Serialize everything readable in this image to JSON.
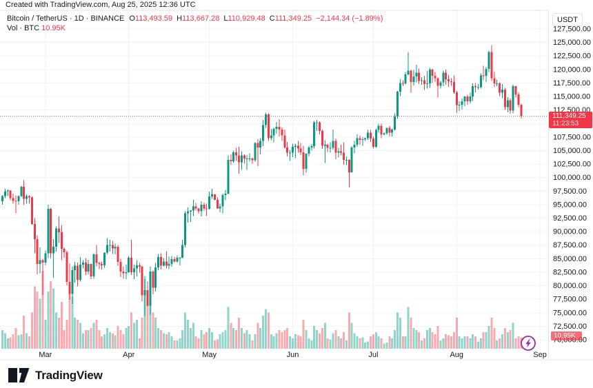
{
  "attribution": "Created with TradingView.com, Aug 25, 2025 12:36 UTC",
  "legend": {
    "title": "Bitcoin / TetherUS · 1D · BINANCE",
    "ohlc": {
      "o_label": "O",
      "o": "113,493.59",
      "h_label": "H",
      "h": "113,667.28",
      "l_label": "L",
      "l": "110,929.48",
      "c_label": "C",
      "c": "111,349.25",
      "change": "−2,144.34 (−1.89%)"
    },
    "volume_label": "Vol · BTC",
    "volume_value": "10.95K"
  },
  "price_axis": {
    "currency": "USDT",
    "ticks": [
      "127,500.00",
      "125,000.00",
      "122,500.00",
      "120,000.00",
      "117,500.00",
      "115,000.00",
      "112,500.00",
      "110,000.00",
      "107,500.00",
      "105,000.00",
      "102,500.00",
      "100,000.00",
      "97,500.00",
      "95,000.00",
      "92,500.00",
      "90,000.00",
      "87,500.00",
      "85,000.00",
      "82,500.00",
      "80,000.00",
      "77,500.00",
      "75,000.00",
      "72,500.00",
      "70,000.00"
    ],
    "last_price_label": "111,349.25",
    "countdown": "11:23:53",
    "volume_badge": "10.95K"
  },
  "time_axis": {
    "months": [
      {
        "label": "Mar",
        "day_index": 16
      },
      {
        "label": "Apr",
        "day_index": 47
      },
      {
        "label": "May",
        "day_index": 77
      },
      {
        "label": "Jun",
        "day_index": 108
      },
      {
        "label": "Jul",
        "day_index": 138
      },
      {
        "label": "Aug",
        "day_index": 169
      },
      {
        "label": "Sep",
        "day_index": 200
      }
    ]
  },
  "footer": {
    "logo_text": "TradingView"
  },
  "colors": {
    "up": "#089981",
    "down": "#F23645",
    "vol_up": "#22ab94",
    "vol_down": "#f7525f",
    "text": "#131722",
    "grid": "#F0F3FA",
    "border": "#E0E3EB",
    "badge_red": "#F23645",
    "flash_purple": "#9C27B0",
    "background": "#FFFFFF"
  },
  "chart_data": {
    "type": "candlestick",
    "title": "Bitcoin / TetherUS",
    "symbol": "BTCUSDT",
    "exchange": "BINANCE",
    "interval": "1D",
    "quote_currency": "USDT",
    "start_date": "2025-02-13",
    "end_date": "2025-08-25",
    "ylim": [
      70000,
      127500
    ],
    "grid_step": 2500,
    "last_price": 111349.25,
    "last_change": -2144.34,
    "last_change_pct": -1.89,
    "last_volume_k_btc": 10.95,
    "price_unit": "thousand USDT",
    "volume_unit": "thousand BTC",
    "volume_scale_max_k": 75,
    "candles_format": [
      "open",
      "high",
      "low",
      "close",
      "volume_k"
    ],
    "candles": [
      [
        95.6,
        96.8,
        95.0,
        96.6,
        18
      ],
      [
        96.6,
        97.9,
        96.2,
        97.5,
        15
      ],
      [
        97.5,
        97.8,
        96.6,
        97.6,
        10
      ],
      [
        97.6,
        97.7,
        95.8,
        96.2,
        11
      ],
      [
        96.2,
        97.0,
        95.2,
        95.7,
        14
      ],
      [
        95.7,
        96.7,
        93.4,
        95.6,
        20
      ],
      [
        95.6,
        96.7,
        95.0,
        96.6,
        13
      ],
      [
        96.6,
        98.5,
        96.4,
        98.3,
        14
      ],
      [
        98.3,
        99.5,
        94.9,
        96.1,
        32
      ],
      [
        96.1,
        96.9,
        95.2,
        96.6,
        15
      ],
      [
        96.6,
        96.7,
        95.2,
        96.3,
        12
      ],
      [
        96.3,
        96.5,
        91.3,
        91.4,
        35
      ],
      [
        91.4,
        92.5,
        86.0,
        88.6,
        60
      ],
      [
        88.6,
        89.3,
        82.1,
        84.0,
        55
      ],
      [
        84.0,
        87.1,
        82.3,
        84.7,
        48
      ],
      [
        84.7,
        85.0,
        78.2,
        84.3,
        75
      ],
      [
        84.3,
        86.5,
        83.8,
        86.0,
        28
      ],
      [
        86.0,
        95.0,
        85.1,
        94.2,
        55
      ],
      [
        94.2,
        94.4,
        85.1,
        86.0,
        65
      ],
      [
        86.0,
        88.6,
        81.5,
        87.2,
        58
      ],
      [
        87.2,
        91.0,
        86.3,
        90.6,
        35
      ],
      [
        90.6,
        92.8,
        87.9,
        89.9,
        30
      ],
      [
        89.9,
        91.2,
        84.7,
        86.8,
        45
      ],
      [
        86.8,
        87.1,
        85.2,
        86.2,
        18
      ],
      [
        86.2,
        86.5,
        80.1,
        80.7,
        28
      ],
      [
        80.7,
        84.1,
        77.4,
        78.5,
        55
      ],
      [
        78.5,
        83.6,
        76.6,
        82.9,
        50
      ],
      [
        82.9,
        84.4,
        80.6,
        83.7,
        30
      ],
      [
        83.7,
        84.3,
        79.9,
        81.1,
        28
      ],
      [
        81.1,
        85.3,
        80.8,
        83.9,
        25
      ],
      [
        83.9,
        84.7,
        83.2,
        84.3,
        15
      ],
      [
        84.3,
        85.1,
        82.0,
        82.6,
        18
      ],
      [
        82.6,
        84.8,
        82.1,
        84.0,
        18
      ],
      [
        84.0,
        84.1,
        81.2,
        81.7,
        20
      ],
      [
        81.7,
        86.0,
        81.3,
        85.8,
        25
      ],
      [
        85.8,
        87.5,
        83.6,
        84.2,
        28
      ],
      [
        84.2,
        84.5,
        83.1,
        84.0,
        18
      ],
      [
        84.0,
        84.5,
        83.0,
        83.8,
        12
      ],
      [
        83.8,
        86.1,
        83.3,
        86.1,
        14
      ],
      [
        86.1,
        88.8,
        85.8,
        87.5,
        20
      ],
      [
        87.5,
        88.5,
        86.3,
        87.5,
        16
      ],
      [
        87.5,
        88.3,
        85.9,
        86.9,
        15
      ],
      [
        86.9,
        87.8,
        85.8,
        87.2,
        13
      ],
      [
        87.2,
        87.5,
        83.7,
        84.4,
        22
      ],
      [
        84.4,
        85.0,
        81.6,
        82.6,
        18
      ],
      [
        82.6,
        83.5,
        81.3,
        82.3,
        14
      ],
      [
        82.3,
        83.9,
        81.2,
        82.5,
        20
      ],
      [
        82.5,
        85.5,
        82.4,
        85.2,
        22
      ],
      [
        85.2,
        88.5,
        82.0,
        82.5,
        35
      ],
      [
        82.5,
        83.9,
        81.2,
        83.2,
        25
      ],
      [
        83.2,
        84.7,
        81.7,
        83.8,
        28
      ],
      [
        83.8,
        84.2,
        82.4,
        83.5,
        10
      ],
      [
        83.5,
        83.7,
        77.1,
        78.2,
        30
      ],
      [
        78.2,
        81.2,
        74.4,
        79.2,
        70
      ],
      [
        79.2,
        80.8,
        76.2,
        76.3,
        45
      ],
      [
        76.3,
        83.5,
        74.6,
        82.6,
        60
      ],
      [
        82.6,
        82.8,
        78.4,
        79.6,
        35
      ],
      [
        79.6,
        84.2,
        78.9,
        83.4,
        30
      ],
      [
        83.4,
        85.9,
        82.9,
        85.3,
        20
      ],
      [
        85.3,
        86.0,
        83.0,
        83.7,
        18
      ],
      [
        83.7,
        85.1,
        83.6,
        84.5,
        15
      ],
      [
        84.5,
        86.4,
        83.2,
        83.7,
        14
      ],
      [
        83.7,
        85.4,
        83.1,
        84.0,
        16
      ],
      [
        84.0,
        85.5,
        83.5,
        84.9,
        12
      ],
      [
        84.9,
        85.3,
        84.3,
        84.5,
        8
      ],
      [
        84.5,
        85.6,
        84.3,
        85.2,
        8
      ],
      [
        85.2,
        85.3,
        83.8,
        85.2,
        10
      ],
      [
        85.2,
        88.5,
        85.1,
        87.5,
        18
      ],
      [
        87.5,
        93.8,
        87.1,
        93.4,
        35
      ],
      [
        93.4,
        94.5,
        91.7,
        93.7,
        28
      ],
      [
        93.7,
        94.0,
        91.8,
        93.9,
        20
      ],
      [
        93.9,
        95.9,
        92.9,
        94.7,
        25
      ],
      [
        94.7,
        95.3,
        93.9,
        94.3,
        12
      ],
      [
        94.3,
        94.4,
        93.3,
        93.8,
        10
      ],
      [
        93.8,
        95.6,
        92.8,
        95.0,
        18
      ],
      [
        95.0,
        95.4,
        93.9,
        94.3,
        14
      ],
      [
        94.3,
        95.2,
        92.9,
        94.2,
        16
      ],
      [
        94.2,
        97.4,
        94.1,
        96.5,
        20
      ],
      [
        96.5,
        97.9,
        96.1,
        96.9,
        16
      ],
      [
        96.9,
        96.9,
        95.8,
        95.9,
        8
      ],
      [
        95.9,
        96.3,
        94.2,
        94.3,
        9
      ],
      [
        94.3,
        95.2,
        93.6,
        94.7,
        14
      ],
      [
        94.7,
        97.0,
        93.4,
        96.8,
        16
      ],
      [
        96.8,
        97.7,
        95.8,
        97.0,
        18
      ],
      [
        97.0,
        104.1,
        96.9,
        103.3,
        40
      ],
      [
        103.3,
        104.3,
        102.3,
        103.0,
        25
      ],
      [
        103.0,
        105.0,
        102.7,
        104.7,
        20
      ],
      [
        104.7,
        105.5,
        103.1,
        104.1,
        18
      ],
      [
        104.1,
        105.7,
        100.7,
        102.8,
        30
      ],
      [
        102.8,
        104.9,
        101.4,
        104.1,
        20
      ],
      [
        104.1,
        104.3,
        102.6,
        103.5,
        15
      ],
      [
        103.5,
        104.2,
        101.4,
        103.5,
        18
      ],
      [
        103.5,
        104.5,
        103.0,
        103.5,
        14
      ],
      [
        103.5,
        103.7,
        102.6,
        103.2,
        8
      ],
      [
        103.2,
        106.5,
        102.9,
        106.4,
        14
      ],
      [
        106.4,
        107.1,
        102.1,
        105.6,
        25
      ],
      [
        105.6,
        107.3,
        104.3,
        106.8,
        20
      ],
      [
        106.8,
        110.7,
        105.8,
        109.7,
        32
      ],
      [
        109.7,
        112.0,
        109.2,
        111.7,
        38
      ],
      [
        111.7,
        111.9,
        106.8,
        107.3,
        35
      ],
      [
        107.3,
        109.0,
        106.9,
        107.8,
        14
      ],
      [
        107.8,
        109.3,
        106.5,
        109.0,
        12
      ],
      [
        109.0,
        110.3,
        108.1,
        109.4,
        15
      ],
      [
        109.4,
        110.8,
        107.6,
        108.9,
        18
      ],
      [
        108.9,
        109.3,
        106.8,
        107.8,
        16
      ],
      [
        107.8,
        108.9,
        105.4,
        105.6,
        18
      ],
      [
        105.6,
        106.6,
        103.9,
        104.6,
        20
      ],
      [
        104.6,
        105.1,
        103.1,
        104.6,
        12
      ],
      [
        104.6,
        106.3,
        103.8,
        105.7,
        10
      ],
      [
        105.7,
        106.3,
        103.6,
        105.9,
        14
      ],
      [
        105.9,
        106.8,
        104.6,
        105.4,
        13
      ],
      [
        105.4,
        106.4,
        104.2,
        104.7,
        12
      ],
      [
        104.7,
        105.9,
        100.4,
        101.6,
        28
      ],
      [
        101.6,
        104.5,
        100.9,
        104.4,
        18
      ],
      [
        104.4,
        105.9,
        103.9,
        105.6,
        10
      ],
      [
        105.6,
        106.2,
        105.0,
        105.8,
        8
      ],
      [
        105.8,
        110.5,
        105.4,
        110.2,
        22
      ],
      [
        110.2,
        110.7,
        108.7,
        110.2,
        18
      ],
      [
        110.2,
        110.4,
        108.0,
        108.6,
        15
      ],
      [
        108.6,
        108.9,
        105.3,
        105.9,
        20
      ],
      [
        105.9,
        106.9,
        102.7,
        106.1,
        25
      ],
      [
        106.1,
        106.3,
        104.7,
        105.5,
        10
      ],
      [
        105.5,
        106.5,
        104.6,
        105.5,
        9
      ],
      [
        105.5,
        108.9,
        105.2,
        106.8,
        15
      ],
      [
        106.8,
        107.2,
        103.4,
        104.6,
        18
      ],
      [
        104.6,
        105.5,
        103.7,
        104.9,
        12
      ],
      [
        104.9,
        106.1,
        104.1,
        104.6,
        10
      ],
      [
        104.6,
        106.5,
        102.4,
        103.3,
        16
      ],
      [
        103.3,
        103.9,
        102.3,
        103.3,
        8
      ],
      [
        103.3,
        103.4,
        98.2,
        101.0,
        35
      ],
      [
        101.0,
        105.8,
        100.9,
        105.6,
        25
      ],
      [
        105.6,
        106.8,
        104.5,
        106.1,
        15
      ],
      [
        106.1,
        108.0,
        105.7,
        107.3,
        12
      ],
      [
        107.3,
        107.8,
        106.1,
        107.0,
        10
      ],
      [
        107.0,
        107.5,
        105.9,
        107.1,
        11
      ],
      [
        107.1,
        107.4,
        106.8,
        107.3,
        6
      ],
      [
        107.3,
        108.8,
        107.0,
        108.3,
        7
      ],
      [
        108.3,
        108.8,
        106.6,
        107.2,
        12
      ],
      [
        107.2,
        107.6,
        105.4,
        105.7,
        14
      ],
      [
        105.7,
        109.0,
        105.5,
        108.8,
        16
      ],
      [
        108.8,
        110.0,
        108.3,
        109.6,
        12
      ],
      [
        109.6,
        110.0,
        107.3,
        108.0,
        10
      ],
      [
        108.0,
        108.4,
        107.8,
        108.2,
        5
      ],
      [
        108.2,
        109.2,
        107.9,
        109.2,
        6
      ],
      [
        109.2,
        109.6,
        107.6,
        108.3,
        12
      ],
      [
        108.3,
        109.1,
        107.6,
        108.9,
        10
      ],
      [
        108.9,
        111.9,
        108.7,
        111.3,
        18
      ],
      [
        111.3,
        116.0,
        110.9,
        115.9,
        35
      ],
      [
        115.9,
        118.2,
        115.1,
        117.5,
        30
      ],
      [
        117.5,
        118.0,
        116.9,
        117.4,
        12
      ],
      [
        117.4,
        119.5,
        117.2,
        119.1,
        12
      ],
      [
        119.1,
        123.2,
        118.9,
        119.8,
        40
      ],
      [
        119.8,
        120.0,
        115.7,
        117.7,
        30
      ],
      [
        117.7,
        119.9,
        117.0,
        118.7,
        20
      ],
      [
        118.7,
        120.9,
        117.6,
        119.4,
        18
      ],
      [
        119.4,
        120.2,
        117.3,
        117.9,
        16
      ],
      [
        117.9,
        118.6,
        117.2,
        118.0,
        8
      ],
      [
        118.0,
        118.8,
        116.2,
        117.3,
        10
      ],
      [
        117.3,
        119.7,
        116.5,
        117.4,
        18
      ],
      [
        117.4,
        120.3,
        116.6,
        120.0,
        20
      ],
      [
        120.0,
        120.2,
        117.5,
        118.8,
        16
      ],
      [
        118.8,
        119.5,
        117.7,
        118.4,
        14
      ],
      [
        118.4,
        118.5,
        114.8,
        117.0,
        22
      ],
      [
        117.0,
        117.9,
        116.5,
        117.6,
        8
      ],
      [
        117.6,
        119.8,
        116.9,
        119.4,
        10
      ],
      [
        119.4,
        120.0,
        117.2,
        118.2,
        14
      ],
      [
        118.2,
        119.0,
        116.8,
        117.8,
        13
      ],
      [
        117.8,
        118.4,
        117.0,
        117.7,
        12
      ],
      [
        117.7,
        118.9,
        115.5,
        115.8,
        16
      ],
      [
        115.8,
        116.0,
        112.0,
        113.4,
        30
      ],
      [
        113.4,
        114.1,
        112.3,
        113.5,
        12
      ],
      [
        113.5,
        114.6,
        112.6,
        114.1,
        10
      ],
      [
        114.1,
        115.1,
        113.2,
        115.0,
        12
      ],
      [
        115.0,
        115.3,
        113.5,
        114.1,
        12
      ],
      [
        114.1,
        115.7,
        113.7,
        115.0,
        10
      ],
      [
        115.0,
        117.4,
        114.2,
        116.9,
        14
      ],
      [
        116.9,
        117.5,
        115.8,
        116.7,
        12
      ],
      [
        116.7,
        117.3,
        116.3,
        116.7,
        7
      ],
      [
        116.7,
        119.3,
        116.5,
        118.9,
        10
      ],
      [
        118.9,
        120.7,
        118.0,
        118.8,
        16
      ],
      [
        118.8,
        120.5,
        117.7,
        120.1,
        16
      ],
      [
        120.1,
        123.5,
        119.5,
        123.2,
        22
      ],
      [
        123.2,
        124.5,
        117.9,
        118.4,
        30
      ],
      [
        118.4,
        119.5,
        116.8,
        117.4,
        20
      ],
      [
        117.4,
        118.1,
        116.9,
        117.4,
        8
      ],
      [
        117.4,
        117.6,
        115.1,
        115.7,
        10
      ],
      [
        115.7,
        117.3,
        114.7,
        116.3,
        14
      ],
      [
        116.3,
        116.6,
        112.5,
        113.0,
        20
      ],
      [
        113.0,
        114.9,
        112.1,
        114.3,
        16
      ],
      [
        114.3,
        114.6,
        111.8,
        112.4,
        18
      ],
      [
        112.4,
        117.2,
        111.9,
        116.9,
        25
      ],
      [
        116.9,
        117.0,
        114.8,
        115.4,
        10
      ],
      [
        115.4,
        115.8,
        113.0,
        113.5,
        12
      ],
      [
        113.49,
        113.67,
        110.93,
        111.35,
        10.95
      ]
    ]
  }
}
